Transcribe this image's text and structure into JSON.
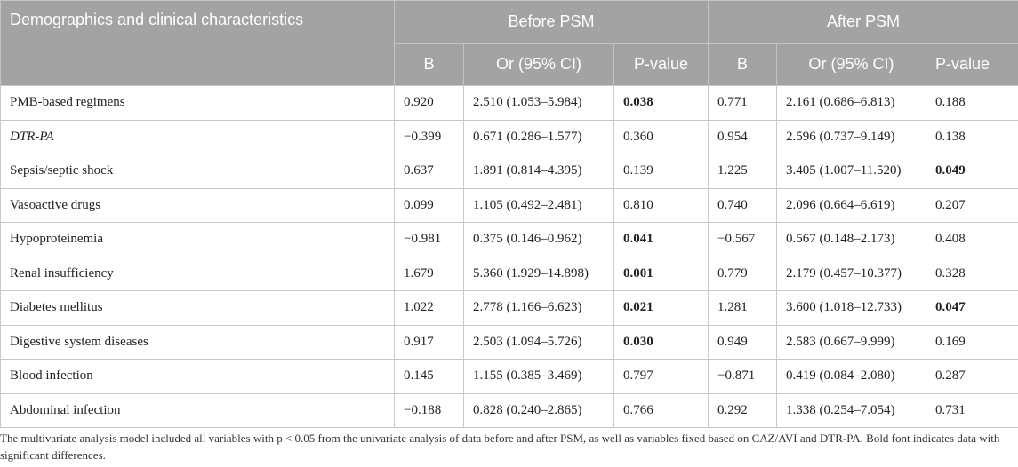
{
  "table": {
    "header": {
      "characteristics": "Demographics and clinical characteristics",
      "before": "Before PSM",
      "after": "After PSM",
      "subcols": [
        "B",
        "Or (95% CI)",
        "P-value",
        "B",
        "Or (95% CI)",
        "P-value"
      ]
    },
    "rows": [
      {
        "name": "PMB-based regimens",
        "italic": false,
        "b1": "0.920",
        "or1": "2.510 (1.053–5.984)",
        "p1": "0.038",
        "sig1": true,
        "b2": "0.771",
        "or2": "2.161 (0.686–6.813)",
        "p2": "0.188",
        "sig2": false
      },
      {
        "name": "DTR-PA",
        "italic": true,
        "b1": "−0.399",
        "or1": "0.671 (0.286–1.577)",
        "p1": "0.360",
        "sig1": false,
        "b2": "0.954",
        "or2": "2.596 (0.737–9.149)",
        "p2": "0.138",
        "sig2": false
      },
      {
        "name": "Sepsis/septic shock",
        "italic": false,
        "b1": "0.637",
        "or1": "1.891 (0.814–4.395)",
        "p1": "0.139",
        "sig1": false,
        "b2": "1.225",
        "or2": "3.405 (1.007–11.520)",
        "p2": "0.049",
        "sig2": true
      },
      {
        "name": "Vasoactive drugs",
        "italic": false,
        "b1": "0.099",
        "or1": "1.105 (0.492–2.481)",
        "p1": "0.810",
        "sig1": false,
        "b2": "0.740",
        "or2": "2.096 (0.664–6.619)",
        "p2": "0.207",
        "sig2": false
      },
      {
        "name": "Hypoproteinemia",
        "italic": false,
        "b1": "−0.981",
        "or1": "0.375 (0.146–0.962)",
        "p1": "0.041",
        "sig1": true,
        "b2": "−0.567",
        "or2": "0.567 (0.148–2.173)",
        "p2": "0.408",
        "sig2": false
      },
      {
        "name": "Renal insufficiency",
        "italic": false,
        "b1": "1.679",
        "or1": "5.360 (1.929–14.898)",
        "p1": "0.001",
        "sig1": true,
        "b2": "0.779",
        "or2": "2.179 (0.457–10.377)",
        "p2": "0.328",
        "sig2": false
      },
      {
        "name": "Diabetes mellitus",
        "italic": false,
        "b1": "1.022",
        "or1": "2.778 (1.166–6.623)",
        "p1": "0.021",
        "sig1": true,
        "b2": "1.281",
        "or2": "3.600 (1.018–12.733)",
        "p2": "0.047",
        "sig2": true
      },
      {
        "name": "Digestive system diseases",
        "italic": false,
        "b1": "0.917",
        "or1": "2.503 (1.094–5.726)",
        "p1": "0.030",
        "sig1": true,
        "b2": "0.949",
        "or2": "2.583 (0.667–9.999)",
        "p2": "0.169",
        "sig2": false
      },
      {
        "name": "Blood infection",
        "italic": false,
        "b1": "0.145",
        "or1": "1.155 (0.385–3.469)",
        "p1": "0.797",
        "sig1": false,
        "b2": "−0.871",
        "or2": "0.419 (0.084–2.080)",
        "p2": "0.287",
        "sig2": false
      },
      {
        "name": "Abdominal infection",
        "italic": false,
        "b1": "−0.188",
        "or1": "0.828 (0.240–2.865)",
        "p1": "0.766",
        "sig1": false,
        "b2": "0.292",
        "or2": "1.338 (0.254–7.054)",
        "p2": "0.731",
        "sig2": false
      }
    ]
  },
  "footnote": "The multivariate analysis model included all variables with p < 0.05 from the univariate analysis of data before and after PSM, as well as variables fixed based on CAZ/AVI and DTR-PA. Bold font indicates data with significant differences.",
  "colors": {
    "header_bg": "#a3a3a3",
    "header_text": "#ffffff",
    "border": "#c8c8c8"
  }
}
